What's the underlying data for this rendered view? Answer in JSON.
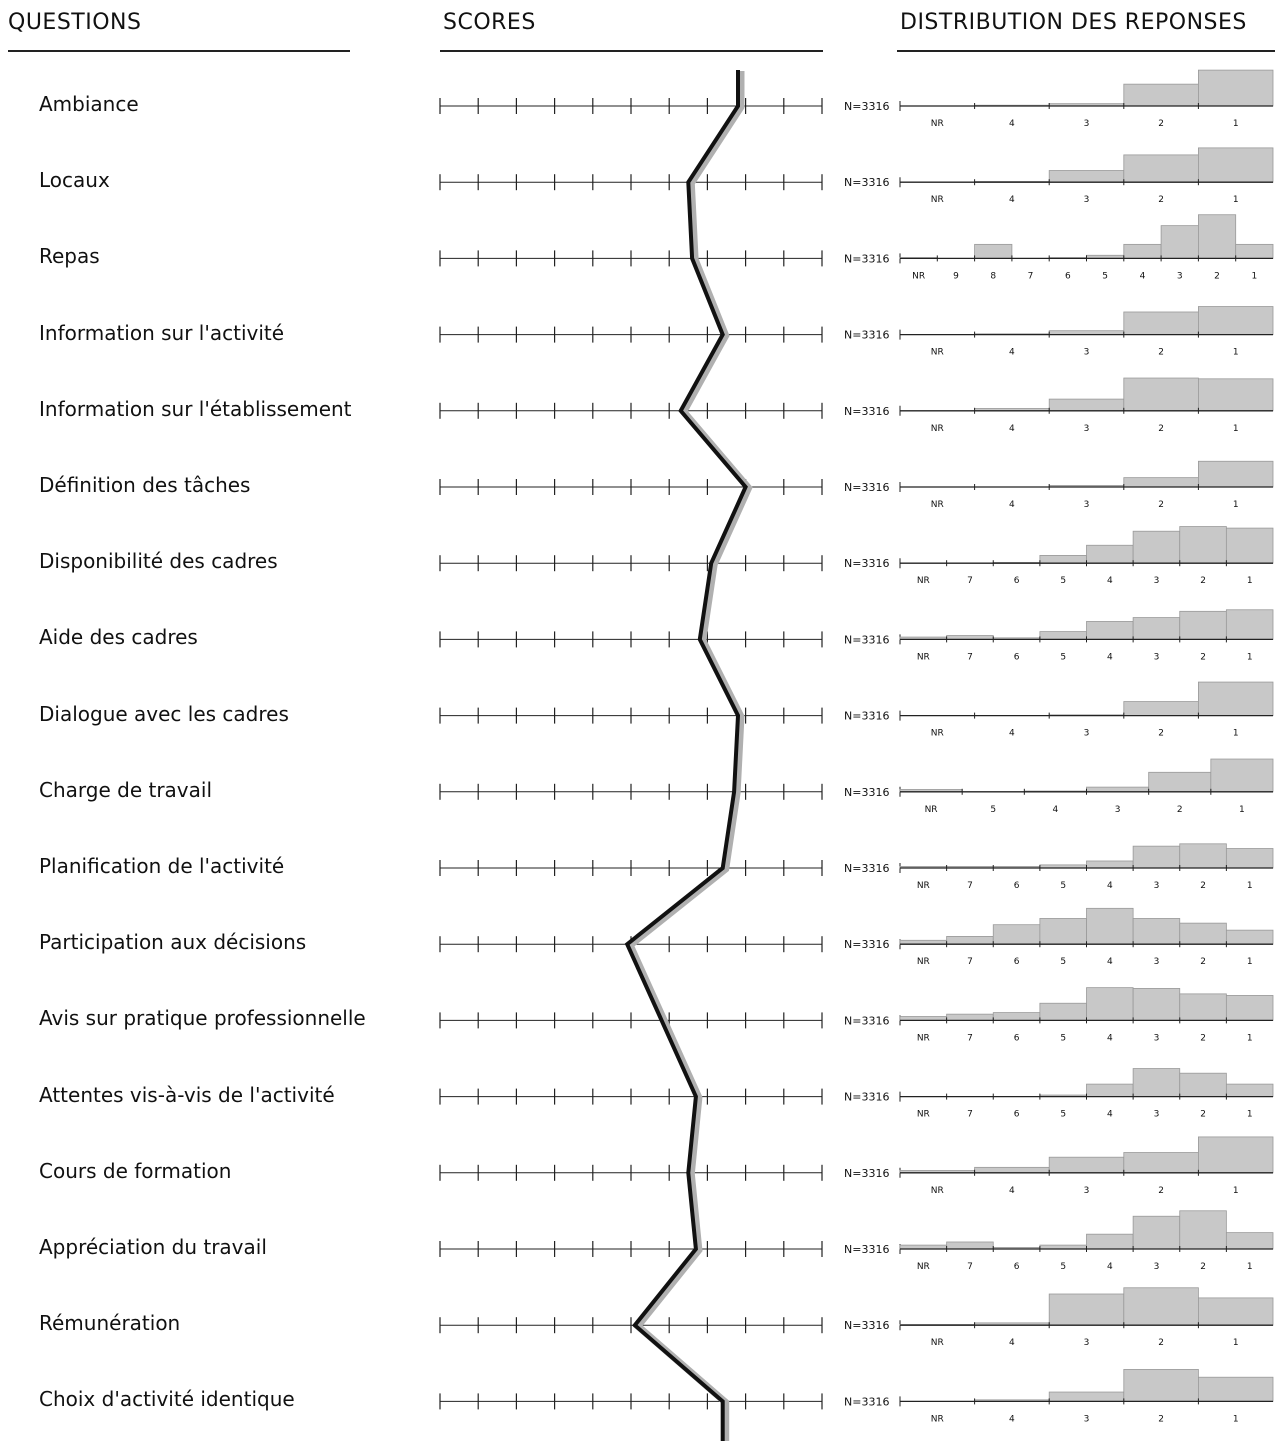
{
  "headers": {
    "questions": "QUESTIONS",
    "scores": "SCORES",
    "distribution": "DISTRIBUTION DES REPONSES"
  },
  "chart_data": {
    "type": "line",
    "n_label": "N=3316",
    "score_scale": [
      0,
      10
    ],
    "rows": [
      {
        "label": "Ambiance",
        "score": 7.8,
        "cats": [
          "NR",
          "4",
          "3",
          "2",
          "1"
        ],
        "dist": [
          0,
          1,
          3,
          28,
          46
        ]
      },
      {
        "label": "Locaux",
        "score": 6.5,
        "cats": [
          "NR",
          "4",
          "3",
          "2",
          "1"
        ],
        "dist": [
          0,
          1,
          15,
          35,
          44
        ]
      },
      {
        "label": "Repas",
        "score": 6.6,
        "cats": [
          "NR",
          "9",
          "8",
          "7",
          "6",
          "5",
          "4",
          "3",
          "2",
          "1"
        ],
        "dist": [
          1,
          0,
          18,
          0,
          1,
          4,
          18,
          42,
          56,
          18
        ]
      },
      {
        "label": "Information sur l'activité",
        "score": 7.4,
        "cats": [
          "NR",
          "4",
          "3",
          "2",
          "1"
        ],
        "dist": [
          0,
          1,
          5,
          29,
          36
        ]
      },
      {
        "label": "Information sur l'établissement",
        "score": 6.3,
        "cats": [
          "NR",
          "4",
          "3",
          "2",
          "1"
        ],
        "dist": [
          0,
          3,
          15,
          42,
          41
        ]
      },
      {
        "label": "Définition des tâches",
        "score": 8.0,
        "cats": [
          "NR",
          "4",
          "3",
          "2",
          "1"
        ],
        "dist": [
          0,
          0,
          2,
          12,
          33
        ]
      },
      {
        "label": "Disponibilité des cadres",
        "score": 7.1,
        "cats": [
          "NR",
          "7",
          "6",
          "5",
          "4",
          "3",
          "2",
          "1"
        ],
        "dist": [
          0,
          0,
          1,
          10,
          23,
          41,
          47,
          45
        ]
      },
      {
        "label": "Aide des cadres",
        "score": 6.8,
        "cats": [
          "NR",
          "7",
          "6",
          "5",
          "4",
          "3",
          "2",
          "1"
        ],
        "dist": [
          3,
          5,
          2,
          10,
          23,
          28,
          36,
          38
        ]
      },
      {
        "label": "Dialogue avec les cadres",
        "score": 7.8,
        "cats": [
          "NR",
          "4",
          "3",
          "2",
          "1"
        ],
        "dist": [
          0,
          0,
          1,
          18,
          43
        ]
      },
      {
        "label": "Charge de travail",
        "score": 7.7,
        "cats": [
          "NR",
          "5",
          "4",
          "3",
          "2",
          "1"
        ],
        "dist": [
          3,
          0,
          1,
          6,
          25,
          42
        ]
      },
      {
        "label": "Planification de l'activité",
        "score": 7.4,
        "cats": [
          "NR",
          "7",
          "6",
          "5",
          "4",
          "3",
          "2",
          "1"
        ],
        "dist": [
          2,
          2,
          2,
          4,
          9,
          28,
          31,
          25
        ]
      },
      {
        "label": "Participation aux décisions",
        "score": 4.9,
        "cats": [
          "NR",
          "7",
          "6",
          "5",
          "4",
          "3",
          "2",
          "1"
        ],
        "dist": [
          5,
          10,
          25,
          33,
          46,
          33,
          27,
          18
        ]
      },
      {
        "label": "Avis sur pratique professionnelle",
        "score": 5.8,
        "cats": [
          "NR",
          "7",
          "6",
          "5",
          "4",
          "3",
          "2",
          "1"
        ],
        "dist": [
          5,
          8,
          10,
          22,
          42,
          41,
          34,
          32
        ]
      },
      {
        "label": "Attentes vis-à-vis de l'activité",
        "score": 6.7,
        "cats": [
          "NR",
          "7",
          "6",
          "5",
          "4",
          "3",
          "2",
          "1"
        ],
        "dist": [
          0,
          0,
          0,
          2,
          16,
          36,
          30,
          16
        ]
      },
      {
        "label": "Cours de formation",
        "score": 6.5,
        "cats": [
          "NR",
          "4",
          "3",
          "2",
          "1"
        ],
        "dist": [
          3,
          7,
          20,
          26,
          46
        ]
      },
      {
        "label": "Appréciation du travail",
        "score": 6.7,
        "cats": [
          "NR",
          "7",
          "6",
          "5",
          "4",
          "3",
          "2",
          "1"
        ],
        "dist": [
          5,
          9,
          2,
          5,
          19,
          42,
          49,
          21
        ]
      },
      {
        "label": "Rémunération",
        "score": 5.1,
        "cats": [
          "NR",
          "4",
          "3",
          "2",
          "1"
        ],
        "dist": [
          1,
          3,
          40,
          48,
          35
        ]
      },
      {
        "label": "Choix d'activité identique",
        "score": 7.4,
        "cats": [
          "NR",
          "4",
          "3",
          "2",
          "1"
        ],
        "dist": [
          0,
          2,
          12,
          41,
          31
        ]
      }
    ]
  },
  "colors": {
    "line": "#111111",
    "axis": "#222222",
    "bar": "#c8c8c8",
    "bar_edge": "#999999",
    "shadow": "#b0b0b0"
  }
}
